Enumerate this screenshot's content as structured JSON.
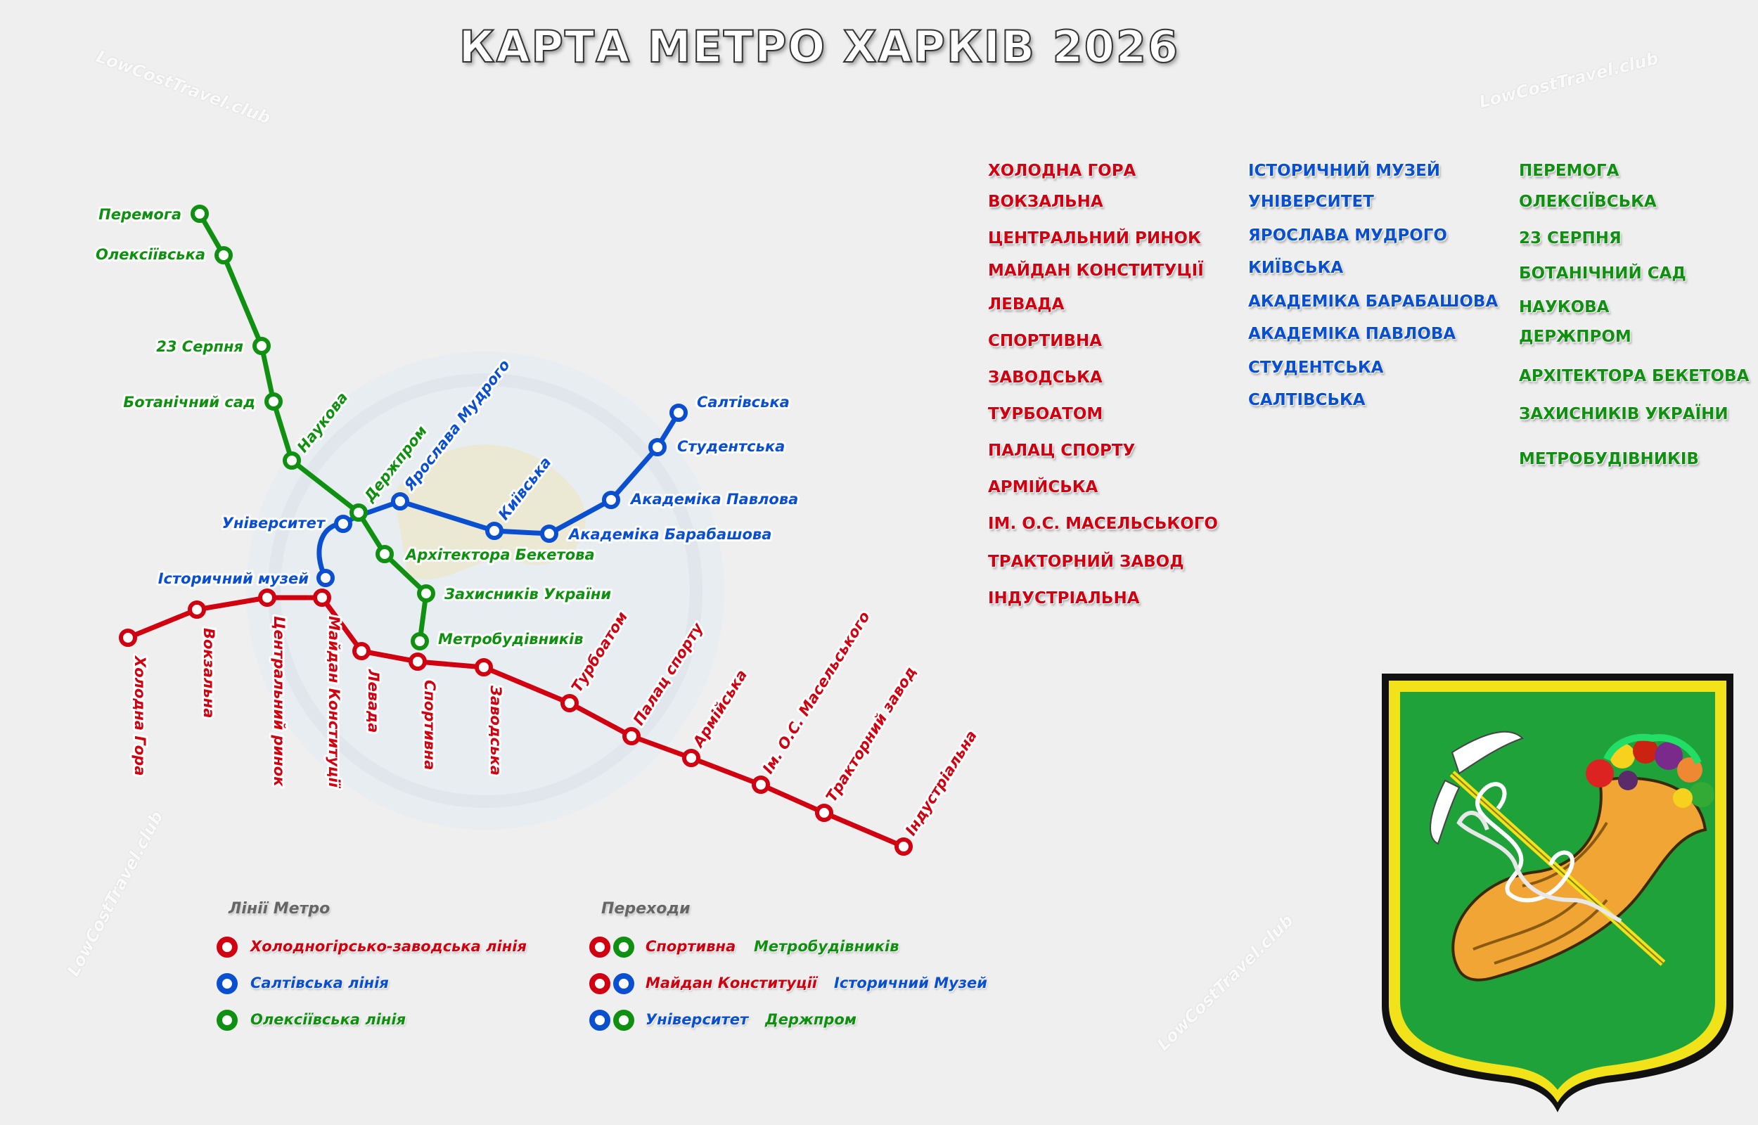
{
  "title": "КАРТА МЕТРО ХАРКІВ 2026",
  "watermark": "LowCostTravel.club",
  "colors": {
    "red": "#d00010",
    "blue": "#0a4fd0",
    "green": "#109010",
    "coat_green": "#20a23a",
    "coat_yellow": "#f2e21a"
  },
  "lines": {
    "red": {
      "name": "Холодногірсько-заводська лінія",
      "color": "#d00010",
      "stations": [
        "Холодна Гора",
        "Вокзальна",
        "Центральний ринок",
        "Майдан Конституції",
        "Левада",
        "Спортивна",
        "Заводська",
        "Турбоатом",
        "Палац спорту",
        "Армійська",
        "Ім. О.С. Масельського",
        "Тракторний завод",
        "Індустріальна"
      ]
    },
    "blue": {
      "name": "Салтівська лінія",
      "color": "#0a4fd0",
      "stations": [
        "Історичний музей",
        "Університет",
        "Ярослава Мудрого",
        "Київська",
        "Академіка Барабашова",
        "Академіка Павлова",
        "Студентська",
        "Салтівська"
      ]
    },
    "green": {
      "name": "Олексіївська лінія",
      "color": "#109010",
      "stations": [
        "Перемога",
        "Олексіївська",
        "23 Серпня",
        "Ботанічний сад",
        "Наукова",
        "Держпром",
        "Архітектора Бекетова",
        "Захисників України",
        "Метробудівників"
      ]
    }
  },
  "station_lists": {
    "red": [
      "ХОЛОДНА ГОРА",
      "ВОКЗАЛЬНА",
      "ЦЕНТРАЛЬНИЙ РИНОК",
      "МАЙДАН КОНСТИТУЦІЇ",
      "ЛЕВАДА",
      "СПОРТИВНА",
      "ЗАВОДСЬКА",
      "ТУРБОАТОМ",
      "ПАЛАЦ СПОРТУ",
      "АРМІЙСЬКА",
      "ІМ. О.С. МАСЕЛЬСЬКОГО",
      "ТРАКТОРНИЙ ЗАВОД",
      "ІНДУСТРІАЛЬНА"
    ],
    "blue": [
      "ІСТОРИЧНИЙ МУЗЕЙ",
      "УНІВЕРСИТЕТ",
      "ЯРОСЛАВА МУДРОГО",
      "КИЇВСЬКА",
      "АКАДЕМІКА БАРАБАШОВА",
      "АКАДЕМІКА ПАВЛОВА",
      "СТУДЕНТСЬКА",
      "САЛТІВСЬКА"
    ],
    "green": [
      "ПЕРЕМОГА",
      "ОЛЕКСІЇВСЬКА",
      "23 СЕРПНЯ",
      "БОТАНІЧНИЙ САД",
      "НАУКОВА",
      "ДЕРЖПРОМ",
      "АРХІТЕКТОРА БЕКЕТОВА",
      "ЗАХИСНИКІВ УКРАЇНИ",
      "МЕТРОБУДІВНИКІВ"
    ]
  },
  "legend": {
    "lines_heading": "Лінії Метро",
    "lines": [
      {
        "label": "Холодногірсько-заводська лінія",
        "color": "#d00010"
      },
      {
        "label": "Салтівська лінія",
        "color": "#0a4fd0"
      },
      {
        "label": "Олексіївська лінія",
        "color": "#109010"
      }
    ],
    "transfers_heading": "Переходи",
    "transfers": [
      {
        "a": "Спортивна",
        "a_color": "#d00010",
        "b": "Метробудівників",
        "b_color": "#109010"
      },
      {
        "a": "Майдан Конституції",
        "a_color": "#d00010",
        "b": "Історичний Музей",
        "b_color": "#0a4fd0"
      },
      {
        "a": "Університет",
        "a_color": "#0a4fd0",
        "b": "Держпром",
        "b_color": "#109010"
      }
    ]
  }
}
